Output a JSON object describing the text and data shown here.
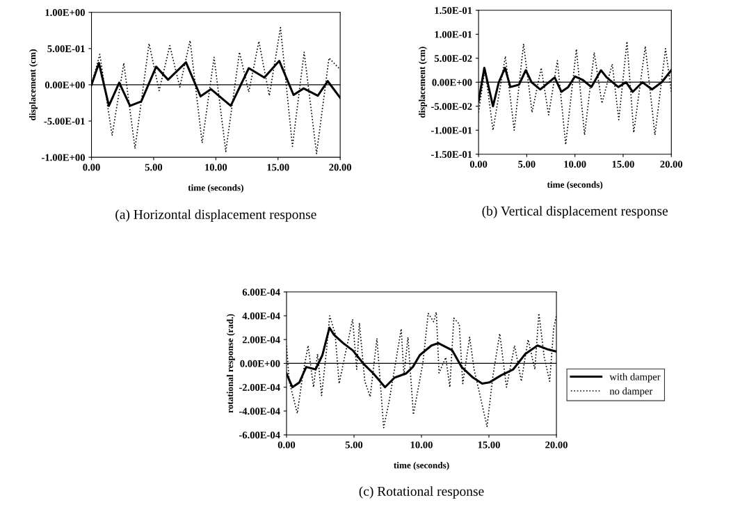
{
  "chart_data": [
    {
      "type": "line",
      "title": "(a) Horizontal displacement response",
      "xlabel": "time (seconds)",
      "ylabel": "displacement (cm)",
      "xlim": [
        0,
        20
      ],
      "xticks": [
        {
          "value": 0,
          "label": "0.00"
        },
        {
          "value": 5,
          "label": "5.00"
        },
        {
          "value": 10,
          "label": "10.00"
        },
        {
          "value": 15,
          "label": "15.00"
        },
        {
          "value": 20,
          "label": "20.00"
        }
      ],
      "ylim": [
        -1,
        1
      ],
      "yticks": [
        {
          "value": -1,
          "label": "-1.00E+00"
        },
        {
          "value": -0.5,
          "label": "-5.00E-01"
        },
        {
          "value": 0,
          "label": "0.00E+00"
        },
        {
          "value": 0.5,
          "label": "5.00E-01"
        },
        {
          "value": 1,
          "label": "1.00E+00"
        }
      ],
      "grid": false,
      "legend": false,
      "ref_lines": [
        {
          "axis": "y",
          "value": 0,
          "color": "#000000"
        }
      ],
      "series": [
        {
          "color": "#000000",
          "line_style": "solid",
          "x": [
            0,
            0.6,
            1.4,
            2.23,
            3.1,
            4.0,
            5.2,
            6.16,
            7.6,
            8.77,
            9.6,
            11.2,
            12.65,
            13.9,
            15.1,
            16.25,
            17.06,
            18.2,
            19.0,
            20
          ],
          "values": [
            0,
            0.3,
            -0.29,
            0.03,
            -0.29,
            -0.23,
            0.25,
            0.07,
            0.31,
            -0.16,
            -0.06,
            -0.29,
            0.23,
            0.1,
            0.33,
            -0.14,
            -0.05,
            -0.15,
            0.05,
            -0.18
          ]
        },
        {
          "color": "#000000",
          "line_style": "dotted",
          "x": [
            0,
            0.67,
            1.66,
            2.6,
            3.5,
            4.63,
            5.44,
            6.3,
            7.1,
            7.93,
            8.9,
            9.86,
            10.8,
            11.9,
            12.65,
            13.46,
            14.3,
            15.2,
            16.16,
            17.1,
            18.1,
            19.1,
            20
          ],
          "values": [
            0,
            0.42,
            -0.7,
            0.3,
            -0.88,
            0.57,
            -0.08,
            0.54,
            -0.03,
            0.61,
            -0.8,
            0.38,
            -0.92,
            0.45,
            -0.1,
            0.6,
            -0.15,
            0.79,
            -0.85,
            0.45,
            -0.95,
            0.37,
            0.21
          ]
        }
      ]
    },
    {
      "type": "line",
      "title": "(b) Vertical displacement response",
      "xlabel": "time (seconds)",
      "ylabel": "displacement (cm)",
      "xlim": [
        0,
        20
      ],
      "xticks": [
        {
          "value": 0,
          "label": "0.00"
        },
        {
          "value": 5,
          "label": "5.00"
        },
        {
          "value": 10,
          "label": "10.00"
        },
        {
          "value": 15,
          "label": "15.00"
        },
        {
          "value": 20,
          "label": "20.00"
        }
      ],
      "ylim": [
        -0.15,
        0.15
      ],
      "yticks": [
        {
          "value": -0.15,
          "label": "-1.50E-01"
        },
        {
          "value": -0.1,
          "label": "-1.00E-01"
        },
        {
          "value": -0.05,
          "label": "-5.00E-02"
        },
        {
          "value": 0,
          "label": "0.00E+00"
        },
        {
          "value": 0.05,
          "label": "5.00E-02"
        },
        {
          "value": 0.1,
          "label": "1.00E-01"
        },
        {
          "value": 0.15,
          "label": "1.50E-01"
        }
      ],
      "grid": false,
      "legend": false,
      "ref_lines": [
        {
          "axis": "y",
          "value": 0,
          "color": "#000000"
        }
      ],
      "series": [
        {
          "color": "#000000",
          "line_style": "solid",
          "x": [
            0,
            0.6,
            1.5,
            2.1,
            2.75,
            3.3,
            4.2,
            4.9,
            5.5,
            6.4,
            7.3,
            7.9,
            8.6,
            9.3,
            10.0,
            10.8,
            11.7,
            12.7,
            13.3,
            14.5,
            15.3,
            16.0,
            17.0,
            18.0,
            19.0,
            20
          ],
          "values": [
            -0.04,
            0.03,
            -0.05,
            0.0,
            0.03,
            -0.01,
            -0.005,
            0.025,
            0.0,
            -0.015,
            0.0,
            0.01,
            -0.02,
            -0.01,
            0.012,
            0.005,
            -0.01,
            0.025,
            0.01,
            -0.01,
            0.0,
            -0.02,
            0.0,
            -0.015,
            0.0,
            0.025
          ]
        },
        {
          "color": "#000000",
          "line_style": "dotted",
          "x": [
            0,
            0.67,
            1.5,
            2.78,
            3.7,
            4.67,
            5.55,
            6.5,
            7.27,
            8.18,
            9.04,
            10.15,
            11.0,
            12.0,
            12.8,
            13.87,
            14.55,
            15.4,
            16.1,
            17.3,
            18.3,
            19.4,
            20
          ],
          "values": [
            -0.063,
            0.028,
            -0.1,
            0.054,
            -0.1,
            0.08,
            -0.063,
            0.03,
            -0.068,
            0.045,
            -0.13,
            0.069,
            -0.11,
            0.062,
            -0.044,
            0.038,
            -0.078,
            0.085,
            -0.105,
            0.075,
            -0.11,
            0.07,
            -0.02
          ]
        }
      ]
    },
    {
      "type": "line",
      "title": "(c) Rotational response",
      "xlabel": "time (seconds)",
      "ylabel": "rotational response (rad.)",
      "xlim": [
        0,
        20
      ],
      "xticks": [
        {
          "value": 0,
          "label": "0.00"
        },
        {
          "value": 5,
          "label": "5.00"
        },
        {
          "value": 10,
          "label": "10.00"
        },
        {
          "value": 15,
          "label": "15.00"
        },
        {
          "value": 20,
          "label": "20.00"
        }
      ],
      "ylim": [
        -0.0006,
        0.0006
      ],
      "yticks": [
        {
          "value": -0.0006,
          "label": "-6.00E-04"
        },
        {
          "value": -0.0004,
          "label": "-4.00E-04"
        },
        {
          "value": -0.0002,
          "label": "-2.00E-04"
        },
        {
          "value": 0,
          "label": "0.00E+00"
        },
        {
          "value": 0.0002,
          "label": "2.00E-04"
        },
        {
          "value": 0.0004,
          "label": "4.00E-04"
        },
        {
          "value": 0.0006,
          "label": "6.00E-04"
        }
      ],
      "grid": false,
      "legend": "right",
      "ref_lines": [
        {
          "axis": "y",
          "value": 0,
          "color": "#000000"
        }
      ],
      "series": [
        {
          "name": "with damper",
          "color": "#000000",
          "line_style": "solid",
          "x": [
            0,
            0.43,
            0.95,
            1.46,
            2.15,
            2.66,
            3.18,
            3.52,
            4.2,
            4.9,
            5.76,
            6.44,
            7.3,
            8.0,
            8.85,
            9.36,
            9.88,
            10.74,
            11.25,
            12.28,
            12.97,
            13.83,
            14.5,
            15.03,
            15.9,
            16.8,
            17.7,
            18.6,
            19.3,
            20
          ],
          "values": [
            -8.5e-05,
            -0.0002,
            -0.00016,
            -3e-05,
            -5e-05,
            7e-05,
            0.0003,
            0.00024,
            0.00017,
            0.00011,
            -1e-05,
            -8.5e-05,
            -0.0002,
            -0.00012,
            -8.5e-05,
            -3e-05,
            7e-05,
            0.00015,
            0.00017,
            0.00011,
            -3e-05,
            -0.00012,
            -0.00017,
            -0.00016,
            -0.0001,
            -5e-05,
            8e-05,
            0.00015,
            0.00012,
            0.0001
          ]
        },
        {
          "name": "no damper",
          "color": "#000000",
          "line_style": "dotted",
          "x": [
            0,
            0.2,
            0.8,
            1.2,
            1.6,
            2.0,
            2.3,
            2.6,
            3.0,
            3.2,
            3.6,
            3.9,
            4.3,
            4.9,
            5.2,
            5.4,
            5.8,
            6.2,
            6.7,
            7.2,
            7.6,
            8.5,
            8.7,
            9.0,
            9.4,
            10.1,
            10.5,
            10.9,
            11.1,
            11.3,
            11.8,
            12.1,
            12.4,
            12.8,
            13.06,
            13.57,
            13.9,
            14.3,
            14.86,
            15.3,
            15.8,
            16.3,
            16.9,
            17.4,
            17.9,
            18.4,
            18.7,
            19.1,
            19.5,
            19.8,
            20
          ],
          "values": [
            0.00015,
            -0.00015,
            -0.00042,
            -0.0001,
            0.00015,
            -0.0002,
            8e-05,
            -0.00027,
            0.00015,
            0.0004,
            0.00025,
            -0.00017,
            5e-05,
            0.00037,
            -5e-05,
            0.00034,
            -0.00015,
            -0.00028,
            0.00021,
            -0.00054,
            -0.00032,
            0.00029,
            -0.0001,
            0.00022,
            -0.00043,
            0.0,
            0.00042,
            0.00035,
            0.00043,
            -8e-05,
            5e-05,
            -0.0002,
            0.00038,
            0.00033,
            -0.00017,
            0.00022,
            -5e-05,
            -0.00025,
            -0.00053,
            -0.0001,
            0.00025,
            -0.0002,
            0.00015,
            -0.00015,
            0.0002,
            -5e-05,
            0.00042,
            5e-05,
            -0.00015,
            0.0003,
            0.0004
          ]
        }
      ]
    }
  ]
}
